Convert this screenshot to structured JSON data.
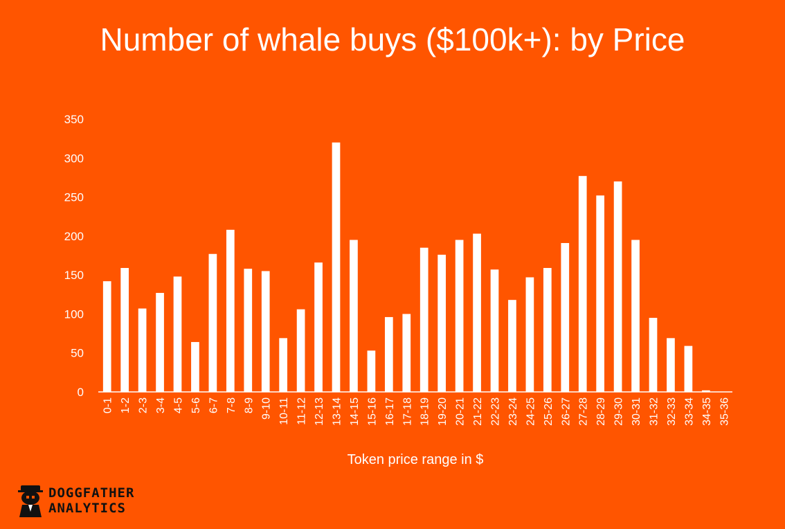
{
  "chart_data": {
    "type": "bar",
    "title": "Number of whale buys ($100k+): by Price",
    "xlabel": "Token price range in $",
    "ylabel": "",
    "ylim": [
      0,
      350
    ],
    "yticks": [
      0,
      50,
      100,
      150,
      200,
      250,
      300,
      350
    ],
    "grid": false,
    "legend": "none",
    "colors": {
      "background": "#ff5500",
      "bars": "#ffffff",
      "text": "#ffffff"
    },
    "categories": [
      "0-1",
      "1-2",
      "2-3",
      "3-4",
      "4-5",
      "5-6",
      "6-7",
      "7-8",
      "8-9",
      "9-10",
      "10-11",
      "11-12",
      "12-13",
      "13-14",
      "14-15",
      "15-16",
      "16-17",
      "17-18",
      "18-19",
      "19-20",
      "20-21",
      "21-22",
      "22-23",
      "23-24",
      "24-25",
      "25-26",
      "26-27",
      "27-28",
      "28-29",
      "29-30",
      "30-31",
      "31-32",
      "32-33",
      "33-34",
      "34-35",
      "35-36"
    ],
    "values": [
      142,
      159,
      107,
      127,
      148,
      64,
      177,
      208,
      158,
      155,
      69,
      106,
      166,
      320,
      195,
      53,
      96,
      100,
      185,
      176,
      195,
      203,
      157,
      118,
      147,
      159,
      191,
      277,
      252,
      270,
      195,
      95,
      69,
      59,
      2,
      0
    ]
  },
  "brand": {
    "line1": "DOGGFATHER",
    "line2": "ANALYTICS",
    "icon": "dog-mascot-icon"
  }
}
